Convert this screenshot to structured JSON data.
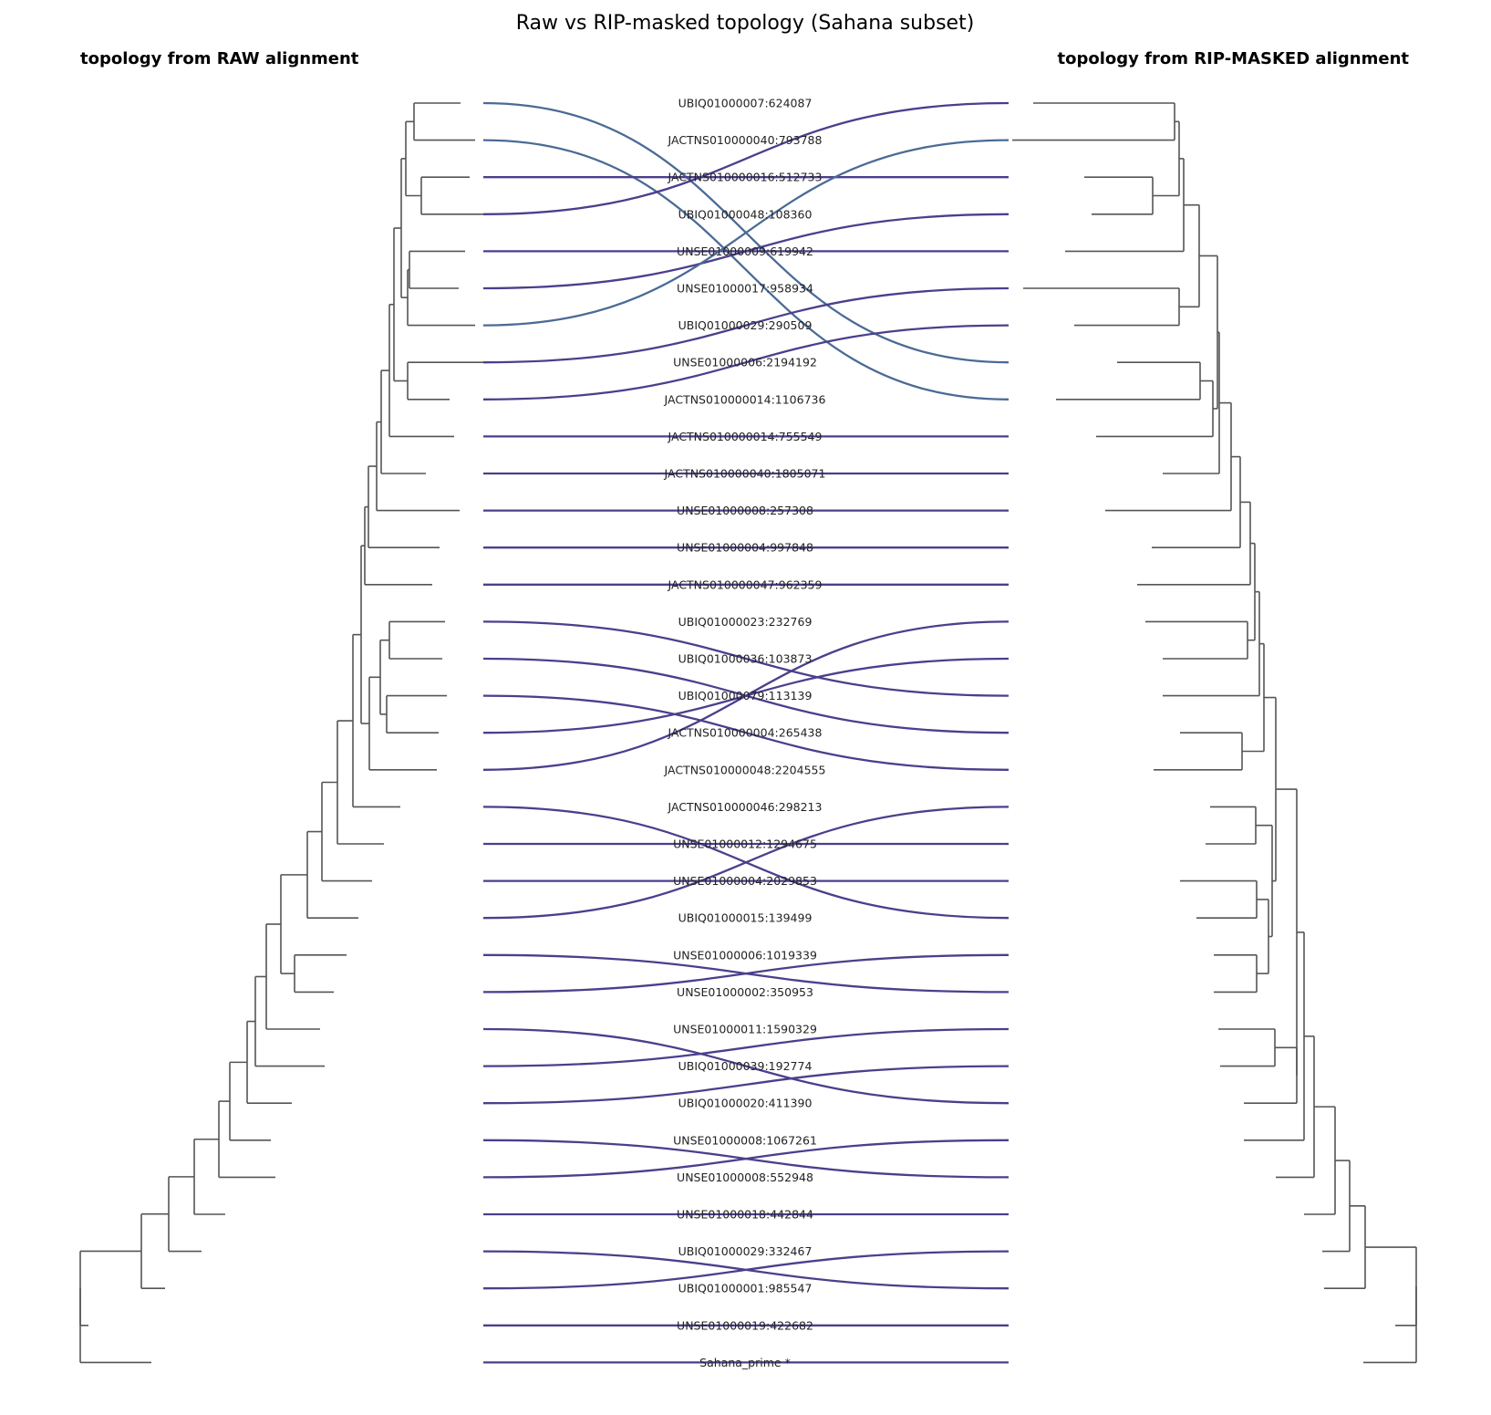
{
  "title": "Raw vs RIP-masked topology (Sahana subset)",
  "left_panel_title": "topology from RAW alignment",
  "right_panel_title": "topology from RIP-MASKED alignment",
  "colors": {
    "tree": "#555555",
    "link_moved": "#4a6b96",
    "link_default": "#4b3f8c",
    "label": "#222222"
  },
  "leaves": [
    "UBIQ01000007:624087",
    "JACTNS010000040:793788",
    "JACTNS010000016:512733",
    "UBIQ01000048:108360",
    "UNSE01000009:619942",
    "UNSE01000017:958934",
    "UBIQ01000029:290509",
    "UNSE01000006:2194192",
    "JACTNS010000014:1106736",
    "JACTNS010000014:755549",
    "JACTNS010000040:1805071",
    "UNSE01000008:257308",
    "UNSE01000004:997848",
    "JACTNS010000047:962359",
    "UBIQ01000023:232769",
    "UBIQ01000036:103873",
    "UBIQ01000079:113139",
    "JACTNS010000004:265438",
    "JACTNS010000048:2204555",
    "JACTNS010000046:298213",
    "UNSE01000012:1294675",
    "UNSE01000004:2029853",
    "UBIQ01000015:139499",
    "UNSE01000006:1019339",
    "UNSE01000002:350953",
    "UNSE01000011:1590329",
    "UBIQ01000039:192774",
    "UBIQ01000020:411390",
    "UNSE01000008:1067261",
    "UNSE01000008:552948",
    "UNSE01000018:442844",
    "UBIQ01000029:332467",
    "UBIQ01000001:985547",
    "UNSE01000019:422682",
    "Sahana_prime *"
  ],
  "tanglegram_links": [
    {
      "raw_row": 0,
      "masked_row": 7,
      "color": "moved"
    },
    {
      "raw_row": 1,
      "masked_row": 8,
      "color": "moved"
    },
    {
      "raw_row": 2,
      "masked_row": 2,
      "color": "default"
    },
    {
      "raw_row": 3,
      "masked_row": 0,
      "color": "default"
    },
    {
      "raw_row": 4,
      "masked_row": 4,
      "color": "default"
    },
    {
      "raw_row": 5,
      "masked_row": 3,
      "color": "default"
    },
    {
      "raw_row": 6,
      "masked_row": 1,
      "color": "moved"
    },
    {
      "raw_row": 7,
      "masked_row": 5,
      "color": "default"
    },
    {
      "raw_row": 8,
      "masked_row": 6,
      "color": "default"
    },
    {
      "raw_row": 9,
      "masked_row": 9,
      "color": "default"
    },
    {
      "raw_row": 10,
      "masked_row": 10,
      "color": "default"
    },
    {
      "raw_row": 11,
      "masked_row": 11,
      "color": "default"
    },
    {
      "raw_row": 12,
      "masked_row": 12,
      "color": "default"
    },
    {
      "raw_row": 13,
      "masked_row": 13,
      "color": "default"
    },
    {
      "raw_row": 14,
      "masked_row": 16,
      "color": "default"
    },
    {
      "raw_row": 15,
      "masked_row": 17,
      "color": "default"
    },
    {
      "raw_row": 16,
      "masked_row": 18,
      "color": "default"
    },
    {
      "raw_row": 17,
      "masked_row": 15,
      "color": "default"
    },
    {
      "raw_row": 18,
      "masked_row": 14,
      "color": "default"
    },
    {
      "raw_row": 19,
      "masked_row": 22,
      "color": "default"
    },
    {
      "raw_row": 20,
      "masked_row": 20,
      "color": "default"
    },
    {
      "raw_row": 21,
      "masked_row": 21,
      "color": "default"
    },
    {
      "raw_row": 22,
      "masked_row": 19,
      "color": "default"
    },
    {
      "raw_row": 23,
      "masked_row": 24,
      "color": "default"
    },
    {
      "raw_row": 24,
      "masked_row": 23,
      "color": "default"
    },
    {
      "raw_row": 25,
      "masked_row": 27,
      "color": "default"
    },
    {
      "raw_row": 26,
      "masked_row": 25,
      "color": "default"
    },
    {
      "raw_row": 27,
      "masked_row": 26,
      "color": "default"
    },
    {
      "raw_row": 28,
      "masked_row": 29,
      "color": "default"
    },
    {
      "raw_row": 29,
      "masked_row": 28,
      "color": "default"
    },
    {
      "raw_row": 30,
      "masked_row": 30,
      "color": "default"
    },
    {
      "raw_row": 31,
      "masked_row": 32,
      "color": "default"
    },
    {
      "raw_row": 32,
      "masked_row": 31,
      "color": "default"
    },
    {
      "raw_row": 33,
      "masked_row": 33,
      "color": "default"
    },
    {
      "raw_row": 34,
      "masked_row": 34,
      "color": "default"
    }
  ]
}
